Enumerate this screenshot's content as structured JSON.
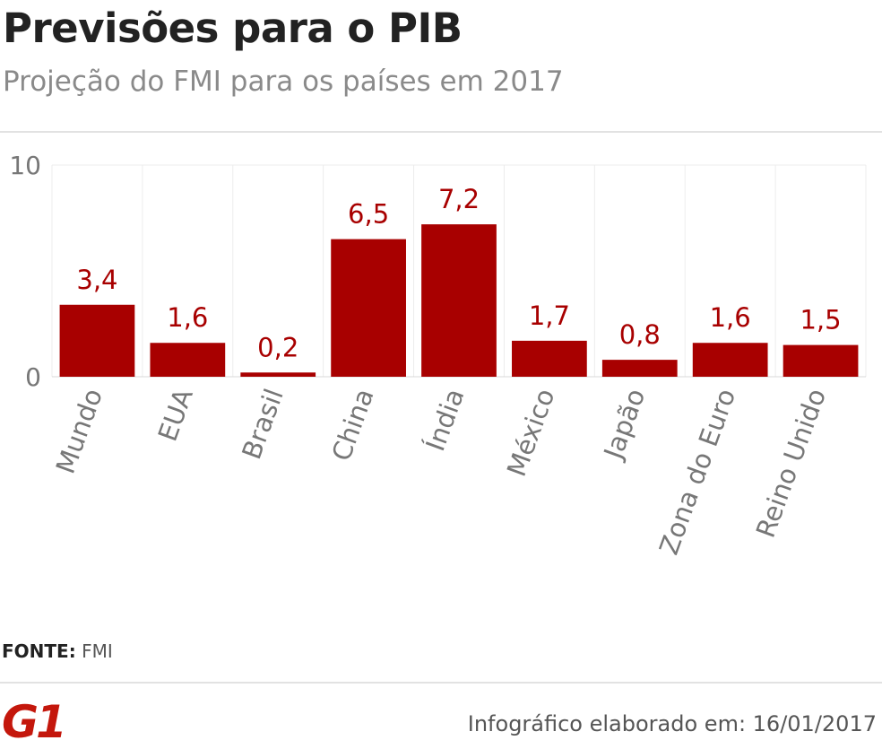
{
  "header": {
    "title": "Previsões para o PIB",
    "subtitle": "Projeção do FMI para os países em 2017"
  },
  "chart_data": {
    "type": "bar",
    "categories": [
      "Mundo",
      "EUA",
      "Brasil",
      "China",
      "Índia",
      "México",
      "Japão",
      "Zona do Euro",
      "Reino Unido"
    ],
    "values": [
      3.4,
      1.6,
      0.2,
      6.5,
      7.2,
      1.7,
      0.8,
      1.6,
      1.5
    ],
    "value_labels": [
      "3,4",
      "1,6",
      "0,2",
      "6,5",
      "7,2",
      "1,7",
      "0,8",
      "1,6",
      "1,5"
    ],
    "y_ticks": [
      "0",
      "10"
    ],
    "ylim": [
      0,
      10
    ],
    "grid": true,
    "bar_color": "#a80000",
    "label_color": "#a80000"
  },
  "footer": {
    "source_label": "FONTE:",
    "source_value": "FMI",
    "logo_text": "G1",
    "logo_color": "#c4170c",
    "credit": "Infográfico elaborado em: 16/01/2017"
  }
}
